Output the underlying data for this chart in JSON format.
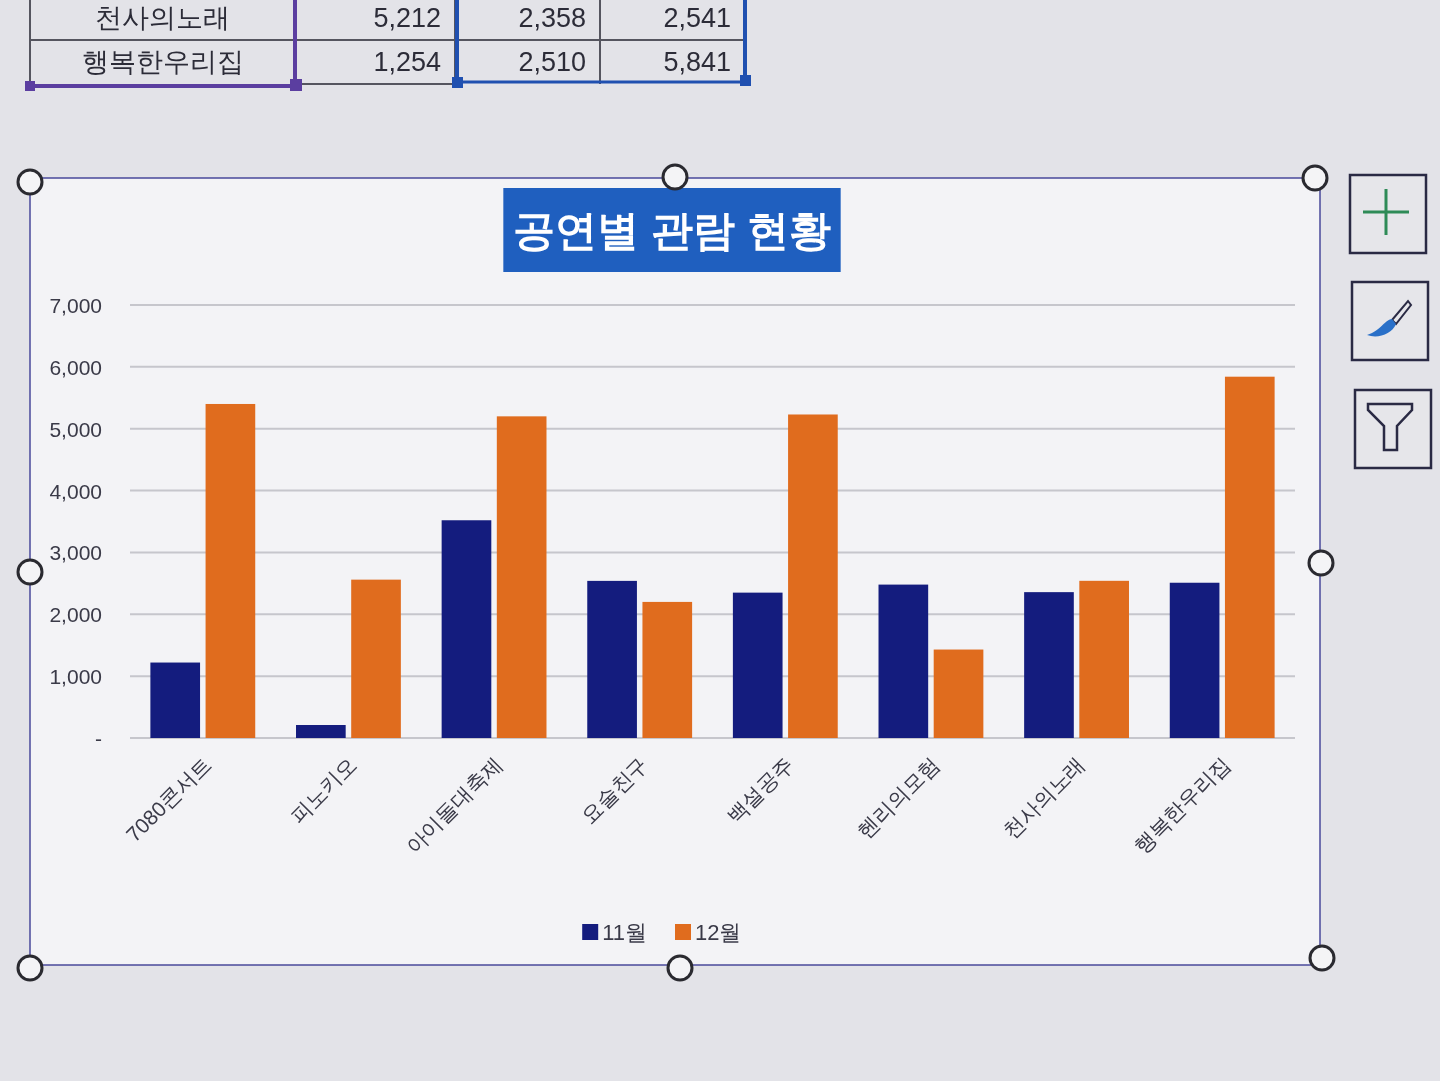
{
  "chart_data": {
    "type": "bar",
    "title": "공연별 관람 현황",
    "categories": [
      "7080콘서트",
      "피노키오",
      "아이돌대축제",
      "요술친구",
      "백설공주",
      "헨리의모험",
      "천사의노래",
      "행복한우리집"
    ],
    "series": [
      {
        "name": "11월",
        "color": "#141c7e",
        "values": [
          1220,
          210,
          3520,
          2540,
          2350,
          2480,
          2358,
          2510
        ]
      },
      {
        "name": "12월",
        "color": "#e06c1e",
        "values": [
          5400,
          2560,
          5200,
          2200,
          5230,
          1430,
          2541,
          5841
        ]
      }
    ],
    "ylim": [
      0,
      7000
    ],
    "yticks": [
      {
        "value": 0,
        "label": "-"
      },
      {
        "value": 1000,
        "label": "1,000"
      },
      {
        "value": 2000,
        "label": "2,000"
      },
      {
        "value": 3000,
        "label": "3,000"
      },
      {
        "value": 4000,
        "label": "4,000"
      },
      {
        "value": 5000,
        "label": "5,000"
      },
      {
        "value": 6000,
        "label": "6,000"
      },
      {
        "value": 7000,
        "label": "7,000"
      }
    ],
    "grid": "y",
    "legend": "bottom",
    "annotations": [
      "천사의노래",
      "5,212",
      "2,358",
      "2,541",
      "행복한우리집",
      "1,254",
      "2,510",
      "5,841"
    ]
  }
}
